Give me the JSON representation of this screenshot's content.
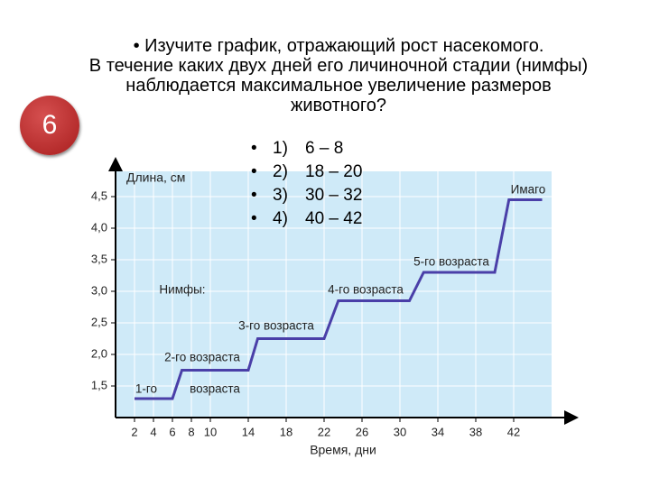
{
  "slide_number": "6",
  "question": {
    "lead": "Изучите график, отражающий рост насекомого.",
    "text": "В течение каких двух дней его личиночной стадии (нимфы) наблюдается максимальное увеличение размеров животного?"
  },
  "options": [
    {
      "num": "1)",
      "text": "6 – 8"
    },
    {
      "num": "2)",
      "text": "18 – 20"
    },
    {
      "num": "3)",
      "text": "30 – 32"
    },
    {
      "num": "4)",
      "text": "40 – 42"
    }
  ],
  "chart_data": {
    "type": "line",
    "y_label": "Длина, см",
    "x_label": "Время, дни",
    "annotations": [
      "Имаго",
      "5-го возраста",
      "4-го возраста",
      "3-го возраста",
      "2-го возраста",
      "1-го",
      "возраста",
      "Нимфы:"
    ],
    "x": [
      2,
      6,
      7,
      14,
      15,
      22,
      23.5,
      31,
      32.5,
      40,
      41.5,
      45
    ],
    "series": [
      {
        "color": "#4a3fa8",
        "values": [
          1.3,
          1.3,
          1.75,
          1.75,
          2.25,
          2.25,
          2.85,
          2.85,
          3.3,
          3.3,
          4.45,
          4.45
        ]
      }
    ],
    "xlim": [
      0,
      46
    ],
    "ylim": [
      1,
      4.9
    ],
    "xticks": [
      2,
      4,
      6,
      8,
      10,
      14,
      18,
      22,
      26,
      30,
      34,
      38,
      42
    ],
    "yticks": [
      {
        "value": 1.5,
        "label": "1,5"
      },
      {
        "value": 2,
        "label": "2,0"
      },
      {
        "value": 2.5,
        "label": "2,5"
      },
      {
        "value": 3,
        "label": "3,0"
      },
      {
        "value": 3.5,
        "label": "3,5"
      },
      {
        "value": 4,
        "label": "4,0"
      },
      {
        "value": 4.5,
        "label": "4,5"
      }
    ],
    "grid": true
  }
}
